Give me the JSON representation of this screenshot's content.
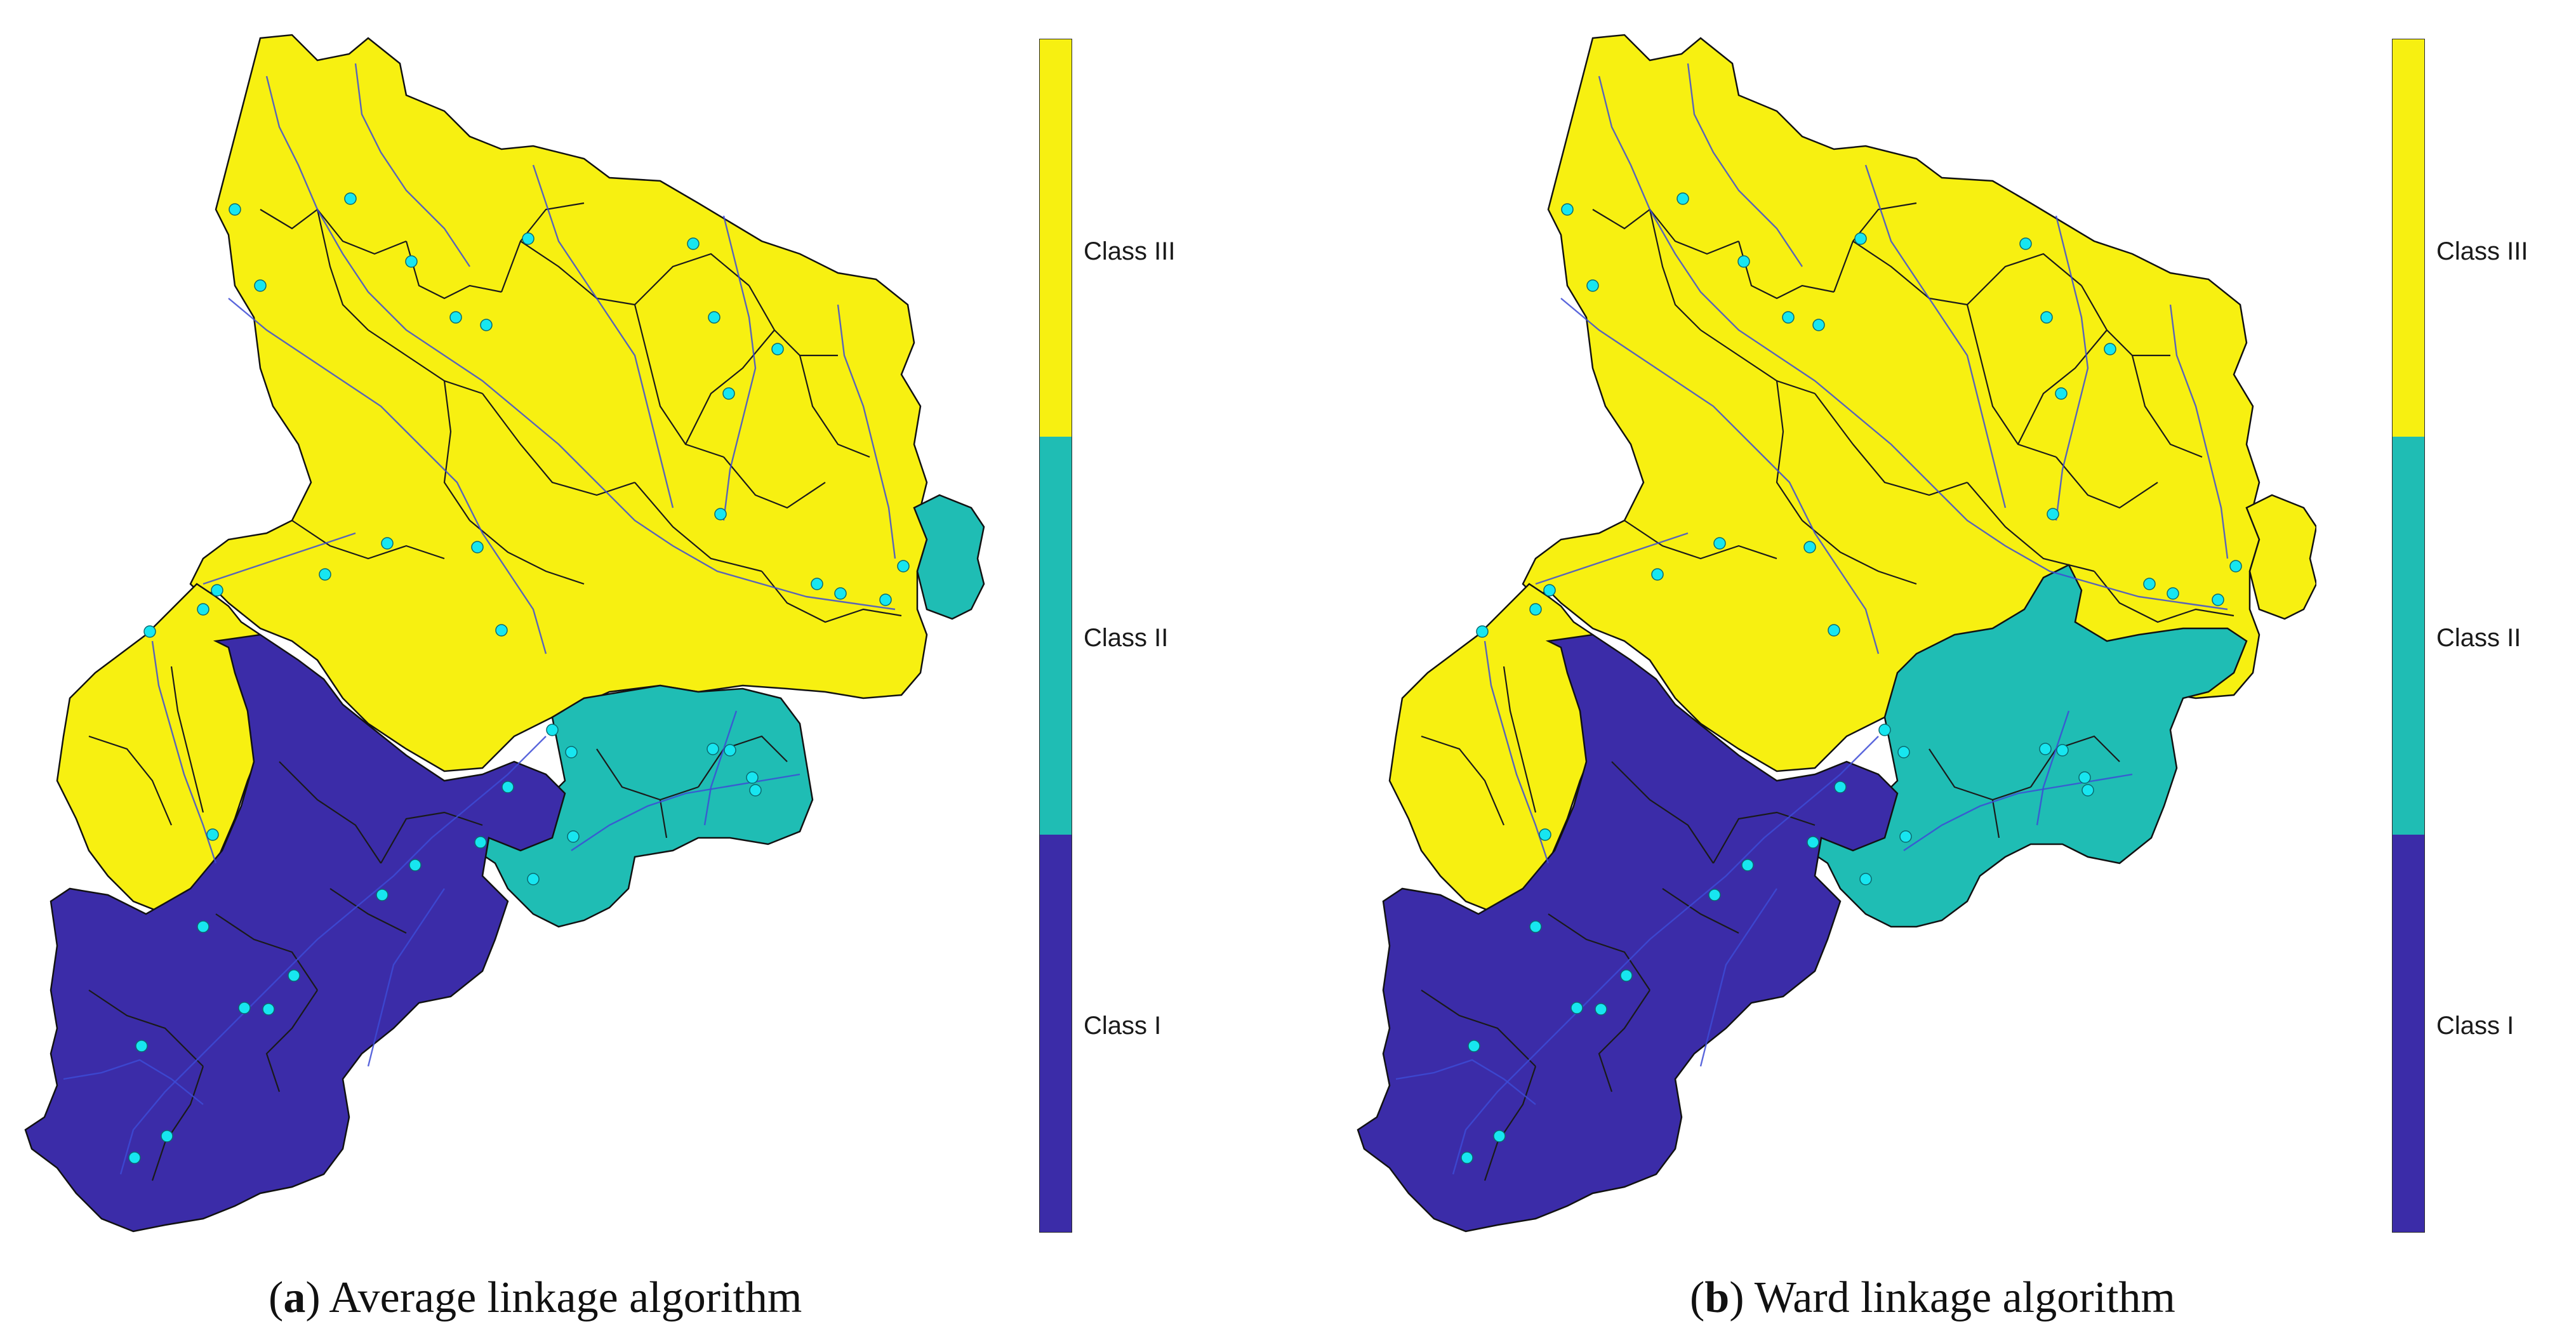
{
  "colors": {
    "class_iii": "#f7f011",
    "class_ii": "#1fbdb4",
    "class_i": "#3b2ca8",
    "river": "#3d4bd6",
    "station": "#17e6f0",
    "border": "#111111"
  },
  "panels": [
    {
      "id": "a",
      "caption_letter": "a",
      "caption_text": "Average linkage algorithm",
      "legend": [
        "Class III",
        "Class II",
        "Class I"
      ]
    },
    {
      "id": "b",
      "caption_letter": "b",
      "caption_text": "Ward linkage algorithm",
      "legend": [
        "Class III",
        "Class II",
        "Class I"
      ]
    }
  ]
}
